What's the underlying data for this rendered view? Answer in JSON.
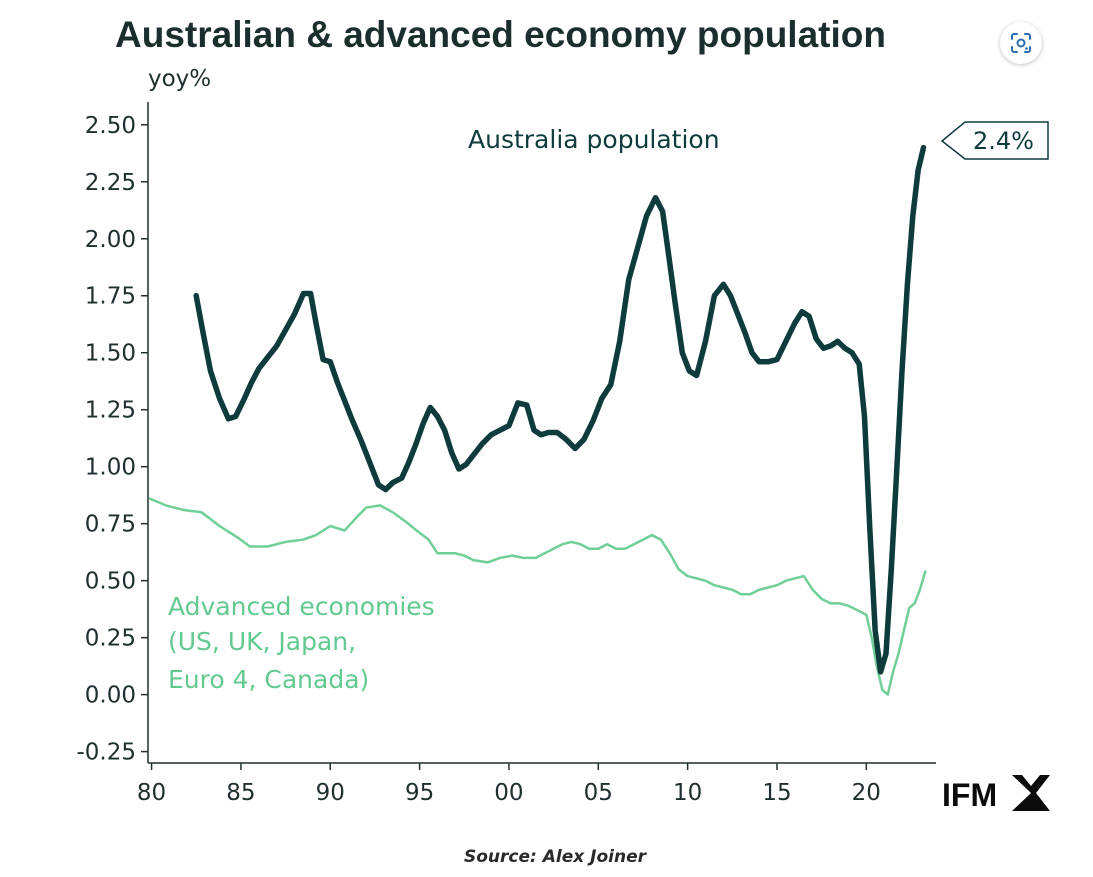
{
  "chart_data": {
    "type": "line",
    "title": "Australian & advanced economy population",
    "ylabel": "yoy%",
    "xlabel": "",
    "ylim": [
      -0.3,
      2.6
    ],
    "xlim": [
      1979.8,
      2023.9
    ],
    "yticks": [
      -0.25,
      0.0,
      0.25,
      0.5,
      0.75,
      1.0,
      1.25,
      1.5,
      1.75,
      2.0,
      2.25,
      2.5
    ],
    "ytick_labels": [
      "-0.25",
      "0.00",
      "0.25",
      "0.50",
      "0.75",
      "1.00",
      "1.25",
      "1.50",
      "1.75",
      "2.00",
      "2.25",
      "2.50"
    ],
    "xticks": [
      1980,
      1985,
      1990,
      1995,
      2000,
      2005,
      2010,
      2015,
      2020
    ],
    "xtick_labels": [
      "80",
      "85",
      "90",
      "95",
      "00",
      "05",
      "10",
      "15",
      "20"
    ],
    "series": [
      {
        "name": "Australia population",
        "label": "Australia population",
        "color": "#0e3b3c",
        "x": [
          1982.5,
          1982.9,
          1983.3,
          1983.8,
          1984.3,
          1984.7,
          1985.2,
          1985.6,
          1986.0,
          1986.5,
          1987.0,
          1987.5,
          1988.0,
          1988.5,
          1988.9,
          1989.2,
          1989.6,
          1990.0,
          1990.4,
          1990.8,
          1991.2,
          1991.7,
          1992.2,
          1992.7,
          1993.1,
          1993.5,
          1994.0,
          1994.4,
          1994.8,
          1995.2,
          1995.6,
          1996.0,
          1996.4,
          1996.8,
          1997.2,
          1997.6,
          1998.0,
          1998.5,
          1999.0,
          1999.5,
          2000.0,
          2000.5,
          2001.0,
          2001.4,
          2001.8,
          2002.2,
          2002.7,
          2003.2,
          2003.7,
          2004.2,
          2004.7,
          2005.2,
          2005.7,
          2006.2,
          2006.7,
          2007.2,
          2007.7,
          2008.2,
          2008.6,
          2008.9,
          2009.3,
          2009.7,
          2010.1,
          2010.5,
          2011.0,
          2011.5,
          2012.0,
          2012.4,
          2012.8,
          2013.2,
          2013.6,
          2014.0,
          2014.5,
          2015.0,
          2015.5,
          2016.0,
          2016.4,
          2016.8,
          2017.2,
          2017.6,
          2018.0,
          2018.4,
          2018.8,
          2019.2,
          2019.6,
          2019.9,
          2020.2,
          2020.5,
          2020.8,
          2021.1,
          2021.4,
          2021.7,
          2022.0,
          2022.3,
          2022.6,
          2022.9,
          2023.2
        ],
        "values": [
          1.75,
          1.58,
          1.42,
          1.3,
          1.21,
          1.22,
          1.3,
          1.37,
          1.43,
          1.48,
          1.53,
          1.6,
          1.67,
          1.76,
          1.76,
          1.63,
          1.47,
          1.46,
          1.37,
          1.29,
          1.21,
          1.12,
          1.02,
          0.92,
          0.9,
          0.93,
          0.95,
          1.02,
          1.1,
          1.19,
          1.26,
          1.22,
          1.16,
          1.06,
          0.99,
          1.01,
          1.05,
          1.1,
          1.14,
          1.16,
          1.18,
          1.28,
          1.27,
          1.16,
          1.14,
          1.15,
          1.15,
          1.12,
          1.08,
          1.12,
          1.2,
          1.3,
          1.36,
          1.55,
          1.82,
          1.96,
          2.1,
          2.18,
          2.12,
          1.95,
          1.72,
          1.5,
          1.42,
          1.4,
          1.55,
          1.75,
          1.8,
          1.75,
          1.67,
          1.59,
          1.5,
          1.46,
          1.46,
          1.47,
          1.55,
          1.63,
          1.68,
          1.66,
          1.56,
          1.52,
          1.53,
          1.55,
          1.52,
          1.5,
          1.45,
          1.22,
          0.72,
          0.28,
          0.1,
          0.18,
          0.55,
          0.98,
          1.42,
          1.8,
          2.1,
          2.3,
          2.4
        ]
      },
      {
        "name": "Advanced economies (US, UK, Japan, Euro 4, Canada)",
        "label_lines": [
          "Advanced economies",
          "(US, UK, Japan,",
          "Euro 4, Canada)"
        ],
        "color": "#6fcf97",
        "x": [
          1979.9,
          1980.8,
          1981.8,
          1982.8,
          1983.8,
          1984.8,
          1985.5,
          1986.5,
          1987.5,
          1988.5,
          1989.2,
          1990.0,
          1990.8,
          1991.5,
          1992.0,
          1992.8,
          1993.5,
          1994.2,
          1995.0,
          1995.5,
          1996.0,
          1996.5,
          1997.0,
          1997.5,
          1998.0,
          1998.8,
          1999.5,
          2000.2,
          2000.8,
          2001.5,
          2002.0,
          2002.5,
          2003.0,
          2003.5,
          2004.0,
          2004.5,
          2005.0,
          2005.5,
          2006.0,
          2006.5,
          2007.0,
          2007.5,
          2008.0,
          2008.5,
          2009.0,
          2009.5,
          2010.0,
          2010.5,
          2011.0,
          2011.5,
          2012.0,
          2012.5,
          2013.0,
          2013.5,
          2014.0,
          2014.5,
          2015.0,
          2015.5,
          2016.0,
          2016.5,
          2017.0,
          2017.5,
          2018.0,
          2018.5,
          2019.0,
          2019.5,
          2020.0,
          2020.3,
          2020.6,
          2020.9,
          2021.2,
          2021.5,
          2021.8,
          2022.1,
          2022.4,
          2022.7,
          2023.0,
          2023.3
        ],
        "values": [
          0.86,
          0.83,
          0.81,
          0.8,
          0.74,
          0.69,
          0.65,
          0.65,
          0.67,
          0.68,
          0.7,
          0.74,
          0.72,
          0.78,
          0.82,
          0.83,
          0.8,
          0.76,
          0.71,
          0.68,
          0.62,
          0.62,
          0.62,
          0.61,
          0.59,
          0.58,
          0.6,
          0.61,
          0.6,
          0.6,
          0.62,
          0.64,
          0.66,
          0.67,
          0.66,
          0.64,
          0.64,
          0.66,
          0.64,
          0.64,
          0.66,
          0.68,
          0.7,
          0.68,
          0.62,
          0.55,
          0.52,
          0.51,
          0.5,
          0.48,
          0.47,
          0.46,
          0.44,
          0.44,
          0.46,
          0.47,
          0.48,
          0.5,
          0.51,
          0.52,
          0.46,
          0.42,
          0.4,
          0.4,
          0.39,
          0.37,
          0.35,
          0.25,
          0.12,
          0.02,
          0.0,
          0.1,
          0.18,
          0.28,
          0.38,
          0.4,
          0.46,
          0.54
        ]
      }
    ],
    "annotations": [
      {
        "text": "2.4%",
        "series": "Australia population",
        "x": 2023.2,
        "y": 2.4
      }
    ],
    "legend": "inline labels"
  },
  "source": "Source: Alex Joiner",
  "logo": {
    "text": "IFM"
  }
}
